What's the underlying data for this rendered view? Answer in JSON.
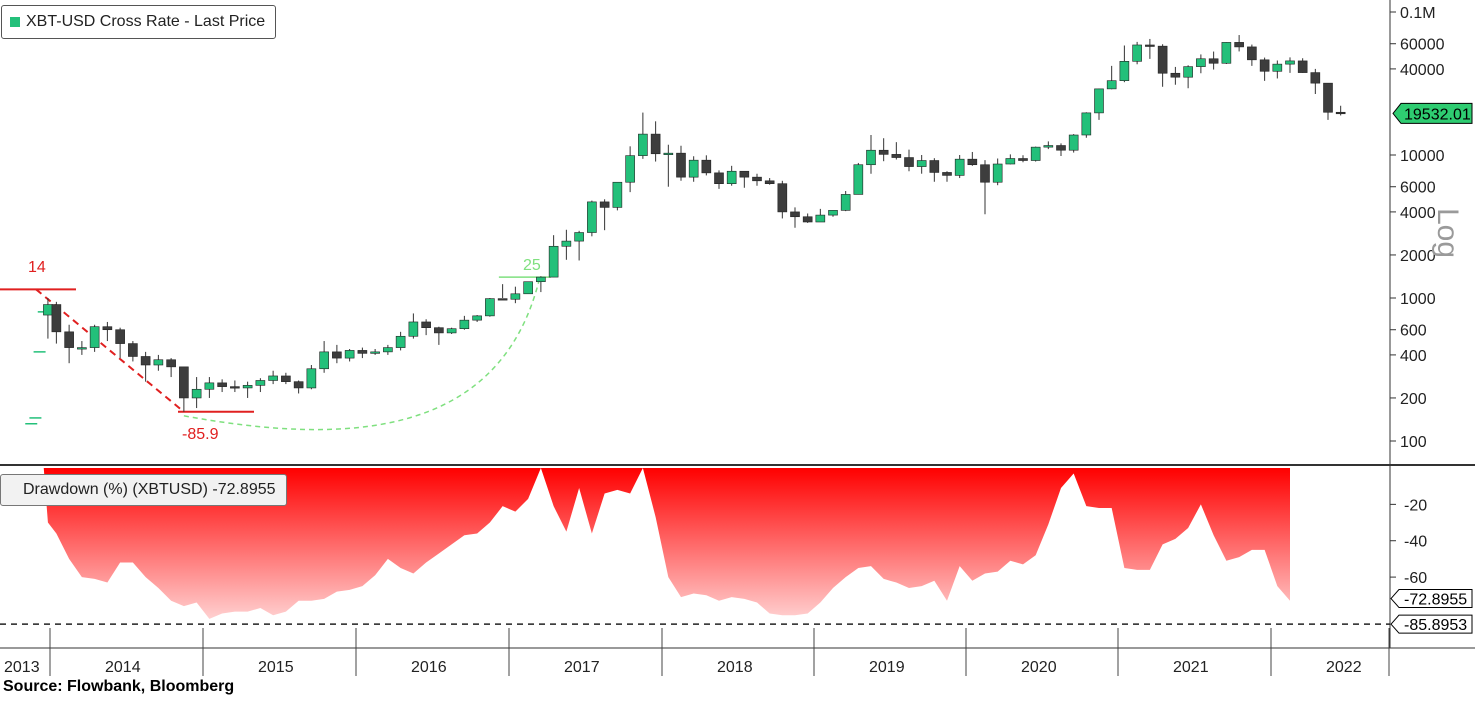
{
  "legend": {
    "price": "XBT-USD Cross Rate - Last Price",
    "drawdown": "Drawdown (%) (XBTUSD) -72.8955"
  },
  "source": "Source: Flowbank, Bloomberg",
  "colors": {
    "up": "#23c07a",
    "down": "#3d3d3d",
    "drawdown": "#ff0000",
    "annotation_red": "#e02020",
    "annotation_green": "#7fe07f"
  },
  "chart_data": [
    {
      "type": "candlestick",
      "title": "XBT-USD Cross Rate - Last Price",
      "scale": "log",
      "ylabel": "Log",
      "ylim": [
        60,
        100000
      ],
      "y_ticks": [
        100,
        200,
        400,
        600,
        1000,
        2000,
        4000,
        6000,
        10000,
        40000,
        60000,
        100000
      ],
      "y_tick_labels": [
        "100",
        "200",
        "400",
        "600",
        "1000",
        "2000",
        "4000",
        "6000",
        "10000",
        "40000",
        "60000",
        "0.1M"
      ],
      "last_price_label": "19532.01",
      "last_price": 19532.01,
      "x_labels": [
        "2013",
        "2014",
        "2015",
        "2016",
        "2017",
        "2018",
        "2019",
        "2020",
        "2021",
        "2022"
      ],
      "start": "2013-08",
      "ohlc": [
        [
          135,
          140,
          128,
          132
        ],
        [
          132,
          150,
          125,
          145
        ],
        [
          145,
          500,
          140,
          420
        ],
        [
          420,
          1150,
          380,
          800
        ],
        [
          760,
          1000,
          520,
          900
        ],
        [
          900,
          940,
          480,
          580
        ],
        [
          580,
          650,
          350,
          450
        ],
        [
          450,
          500,
          400,
          450
        ],
        [
          450,
          650,
          420,
          630
        ],
        [
          630,
          680,
          500,
          600
        ],
        [
          600,
          620,
          380,
          480
        ],
        [
          480,
          500,
          360,
          390
        ],
        [
          390,
          420,
          260,
          340
        ],
        [
          340,
          400,
          310,
          370
        ],
        [
          370,
          380,
          280,
          330
        ],
        [
          330,
          330,
          160,
          200
        ],
        [
          200,
          280,
          170,
          230
        ],
        [
          230,
          280,
          200,
          255
        ],
        [
          255,
          270,
          220,
          240
        ],
        [
          240,
          265,
          220,
          235
        ],
        [
          235,
          260,
          200,
          245
        ],
        [
          245,
          275,
          220,
          265
        ],
        [
          265,
          310,
          250,
          285
        ],
        [
          285,
          300,
          250,
          260
        ],
        [
          260,
          265,
          215,
          235
        ],
        [
          235,
          340,
          230,
          320
        ],
        [
          320,
          500,
          300,
          420
        ],
        [
          420,
          470,
          350,
          380
        ],
        [
          380,
          440,
          360,
          430
        ],
        [
          430,
          450,
          380,
          410
        ],
        [
          410,
          440,
          400,
          420
        ],
        [
          420,
          470,
          400,
          450
        ],
        [
          450,
          580,
          430,
          540
        ],
        [
          540,
          780,
          520,
          680
        ],
        [
          680,
          710,
          550,
          620
        ],
        [
          620,
          630,
          470,
          570
        ],
        [
          570,
          620,
          560,
          610
        ],
        [
          610,
          750,
          600,
          700
        ],
        [
          700,
          760,
          680,
          750
        ],
        [
          750,
          1000,
          740,
          990
        ],
        [
          990,
          1250,
          1000,
          980
        ],
        [
          980,
          1200,
          920,
          1070
        ],
        [
          1070,
          1300,
          1070,
          1300
        ],
        [
          1300,
          1420,
          1100,
          1400
        ],
        [
          1400,
          2750,
          1400,
          2300
        ],
        [
          2300,
          3000,
          1850,
          2500
        ],
        [
          2500,
          2950,
          1830,
          2870
        ],
        [
          2870,
          4800,
          2700,
          4700
        ],
        [
          4700,
          4900,
          2980,
          4300
        ],
        [
          4300,
          6450,
          4100,
          6450
        ],
        [
          6450,
          11500,
          5500,
          9900
        ],
        [
          9900,
          19800,
          9400,
          14000
        ],
        [
          14000,
          17200,
          9000,
          10200
        ],
        [
          10200,
          11800,
          6000,
          10300
        ],
        [
          10300,
          11600,
          6600,
          7000
        ],
        [
          7000,
          9800,
          6500,
          9200
        ],
        [
          9200,
          9950,
          7200,
          7500
        ],
        [
          7500,
          7800,
          5800,
          6300
        ],
        [
          6300,
          8400,
          6100,
          7700
        ],
        [
          7700,
          7700,
          5900,
          7000
        ],
        [
          7000,
          7400,
          6100,
          6600
        ],
        [
          6600,
          6900,
          6200,
          6300
        ],
        [
          6300,
          6600,
          3600,
          4000
        ],
        [
          4000,
          4300,
          3100,
          3700
        ],
        [
          3700,
          3900,
          3350,
          3400
        ],
        [
          3400,
          4200,
          3400,
          3800
        ],
        [
          3800,
          4100,
          3700,
          4100
        ],
        [
          4100,
          5600,
          4050,
          5300
        ],
        [
          5300,
          8800,
          5300,
          8550
        ],
        [
          8550,
          13800,
          7400,
          10800
        ],
        [
          10800,
          13100,
          9050,
          10100
        ],
        [
          10100,
          12300,
          9300,
          9600
        ],
        [
          9600,
          10900,
          7700,
          8300
        ],
        [
          8300,
          10000,
          7400,
          9150
        ],
        [
          9150,
          9500,
          6500,
          7550
        ],
        [
          7550,
          7700,
          6500,
          7200
        ],
        [
          7200,
          10000,
          6900,
          9350
        ],
        [
          9350,
          10500,
          8400,
          8550
        ],
        [
          8550,
          9200,
          3850,
          6450
        ],
        [
          6450,
          9450,
          6150,
          8650
        ],
        [
          8650,
          10100,
          8600,
          9450
        ],
        [
          9450,
          9950,
          8900,
          9150
        ],
        [
          9150,
          11450,
          9000,
          11350
        ],
        [
          11350,
          12450,
          11000,
          11650
        ],
        [
          11650,
          12050,
          9850,
          10800
        ],
        [
          10800,
          14000,
          10400,
          13800
        ],
        [
          13800,
          19900,
          13200,
          19700
        ],
        [
          19700,
          29200,
          17600,
          29000
        ],
        [
          29000,
          42000,
          28800,
          33100
        ],
        [
          33100,
          58300,
          32300,
          45200
        ],
        [
          45200,
          61800,
          43100,
          58800
        ],
        [
          58800,
          64800,
          47000,
          57700
        ],
        [
          57700,
          59500,
          30000,
          37300
        ],
        [
          37300,
          41300,
          31000,
          35000
        ],
        [
          35000,
          42400,
          29300,
          41500
        ],
        [
          41500,
          50500,
          37300,
          47100
        ],
        [
          47100,
          52900,
          39600,
          43800
        ],
        [
          43800,
          61500,
          43300,
          61300
        ],
        [
          61300,
          69000,
          53000,
          57000
        ],
        [
          57000,
          59200,
          42000,
          46300
        ],
        [
          46300,
          48000,
          33000,
          38500
        ],
        [
          38500,
          45800,
          34300,
          43200
        ],
        [
          43200,
          48200,
          37500,
          45500
        ],
        [
          45500,
          47500,
          37600,
          37700
        ],
        [
          37700,
          40000,
          26700,
          31800
        ],
        [
          31800,
          31900,
          17600,
          19900
        ],
        [
          19900,
          22100,
          18900,
          19532
        ]
      ],
      "annotations": {
        "left_peak_label": "14",
        "trough_label": "-85.9",
        "right_peak_label": "25"
      }
    },
    {
      "type": "area",
      "title": "Drawdown (%) (XBTUSD) -72.8955",
      "ylim": [
        -90,
        0
      ],
      "y_ticks": [
        -20,
        -40,
        -60
      ],
      "y_tick_labels": [
        "-20",
        "-40",
        "-60"
      ],
      "last_value_label": "-72.8955",
      "last_value": -72.8955,
      "reference_label": "-85.8953",
      "reference_value": -85.8953,
      "start": "2013-08",
      "values": [
        0,
        0,
        0,
        0,
        -30,
        -36,
        -50,
        -60,
        -61,
        -63,
        -52,
        -52,
        -60,
        -66,
        -73,
        -76,
        -74,
        -83,
        -80,
        -79,
        -79,
        -77,
        -81,
        -79,
        -73,
        -73,
        -72,
        -68,
        -67,
        -65,
        -59,
        -50,
        -55,
        -58,
        -52,
        -47,
        -42,
        -37,
        -36,
        -30,
        -21,
        -24,
        -17,
        0,
        -21,
        -35,
        -11,
        -36,
        -14,
        -12,
        -14,
        0,
        -27,
        -60,
        -71,
        -69,
        -70,
        -73,
        -71,
        -72,
        -74,
        -80,
        -81,
        -81,
        -80,
        -74,
        -66,
        -60,
        -55,
        -54,
        -61,
        -63,
        -66,
        -65,
        -62,
        -73,
        -54,
        -62,
        -58,
        -57,
        -51,
        -53,
        -48,
        -31,
        -11,
        -3,
        -21,
        -22,
        -22,
        -55,
        -56,
        -56,
        -42,
        -39,
        -33,
        -20,
        -37,
        -51,
        -49,
        -45,
        -45,
        -65,
        -73
      ]
    }
  ]
}
